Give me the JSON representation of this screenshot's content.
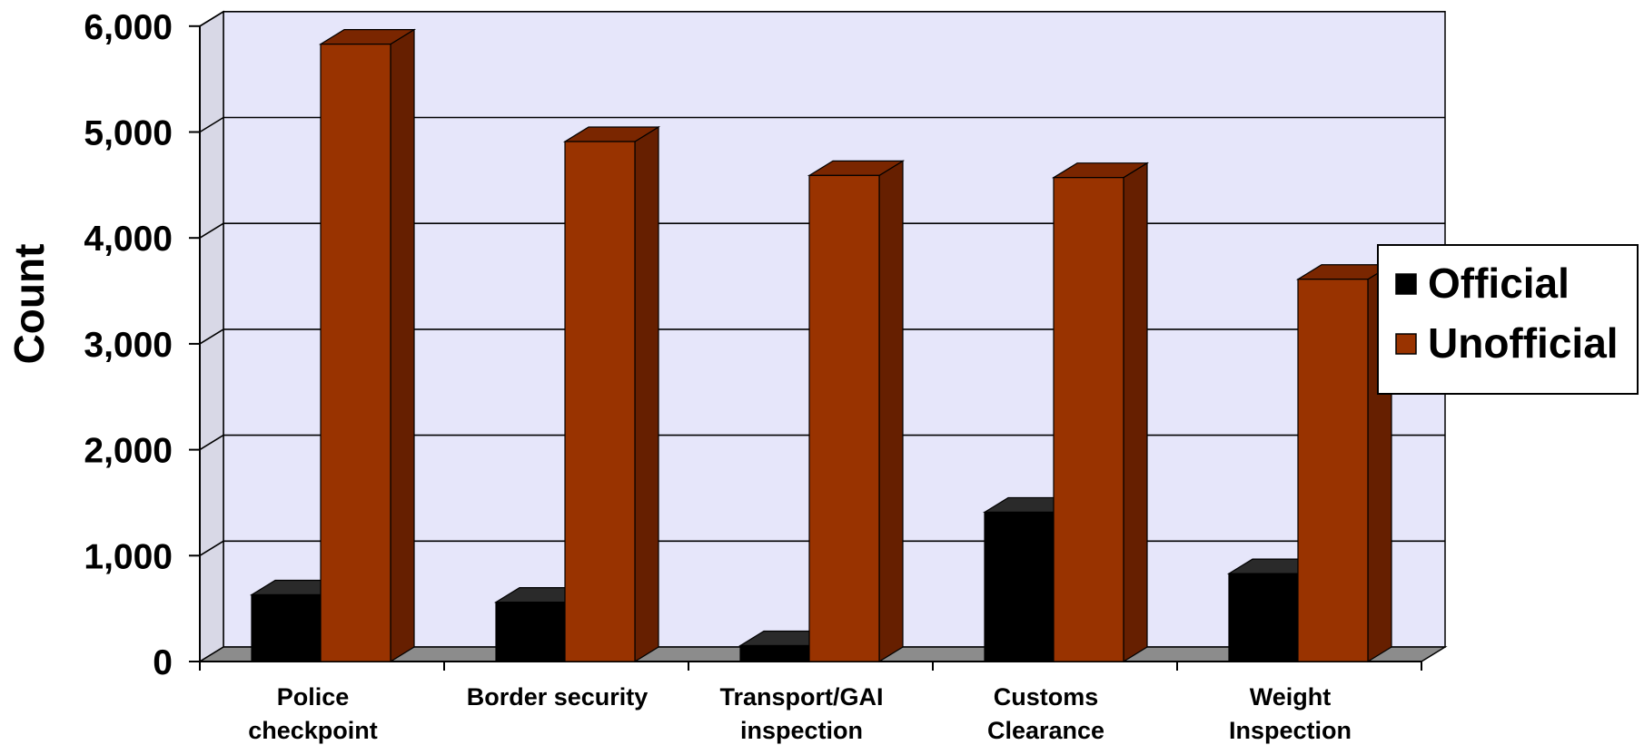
{
  "chart_data": {
    "type": "bar",
    "title": "",
    "xlabel": "",
    "ylabel": "Count",
    "ylim": [
      0,
      6000
    ],
    "yticks": [
      {
        "value": 0,
        "label": "0"
      },
      {
        "value": 1000,
        "label": "1,000"
      },
      {
        "value": 2000,
        "label": "2,000"
      },
      {
        "value": 3000,
        "label": "3,000"
      },
      {
        "value": 4000,
        "label": "4,000"
      },
      {
        "value": 5000,
        "label": "5,000"
      },
      {
        "value": 6000,
        "label": "6,000"
      }
    ],
    "categories": [
      [
        "Police",
        "checkpoint"
      ],
      [
        "Border security"
      ],
      [
        "Transport/GAI",
        "inspection"
      ],
      [
        "Customs",
        "Clearance"
      ],
      [
        "Weight",
        "Inspection"
      ]
    ],
    "series": [
      {
        "name": "Official",
        "values": [
          630,
          560,
          150,
          1410,
          830
        ],
        "color": "#000000",
        "color_top": "#2a2a2a",
        "color_side": "#111111"
      },
      {
        "name": "Unofficial",
        "values": [
          5830,
          4910,
          4590,
          4570,
          3610
        ],
        "color": "#993300",
        "color_top": "#7a2600",
        "color_side": "#661f00"
      }
    ],
    "grid": true,
    "style": "3d",
    "legend_position": "right",
    "colors": {
      "plot_background": "#e6e6fa",
      "side_wall": "#d8d8e6",
      "floor": "#8c8c8c",
      "grid": "#000000"
    }
  }
}
